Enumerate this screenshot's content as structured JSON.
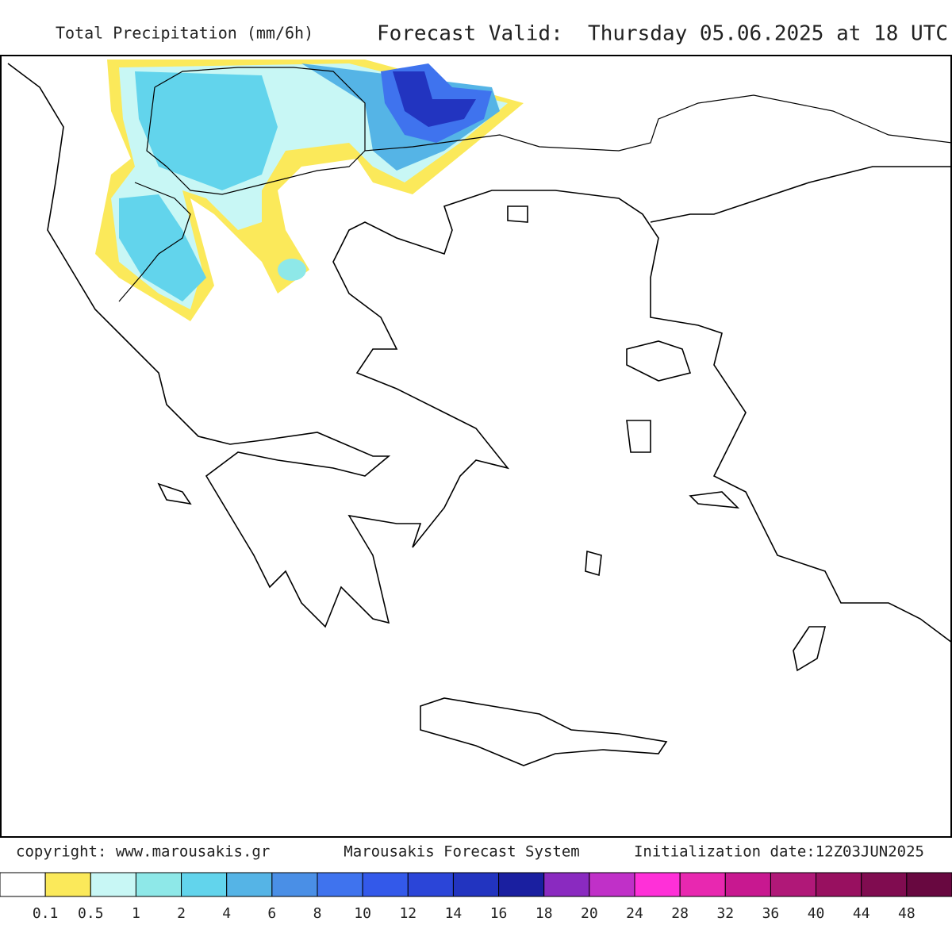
{
  "header": {
    "title": "Total Precipitation (mm/6h)",
    "valid": "Forecast Valid:  Thursday 05.06.2025 at 18 UTC"
  },
  "footer": {
    "copyright": "copyright: www.marousakis.gr",
    "system": "Marousakis Forecast System",
    "init": "Initialization date:12Z03JUN2025"
  },
  "legend": {
    "colors": [
      "#ffffff",
      "#fbe95a",
      "#c8f7f5",
      "#8ee8e8",
      "#62d4ec",
      "#55b4e6",
      "#4a8fe6",
      "#3f73ee",
      "#3359ea",
      "#2b45d8",
      "#2234c0",
      "#1a1fa0",
      "#8a2ac0",
      "#c030c8",
      "#ff30d8",
      "#e828b0",
      "#c81890",
      "#b01878",
      "#981060",
      "#800c50",
      "#680840"
    ],
    "labels": [
      "0.1",
      "0.5",
      "1",
      "2",
      "4",
      "6",
      "8",
      "10",
      "12",
      "14",
      "16",
      "18",
      "20",
      "24",
      "28",
      "32",
      "36",
      "40",
      "44",
      "48"
    ]
  }
}
